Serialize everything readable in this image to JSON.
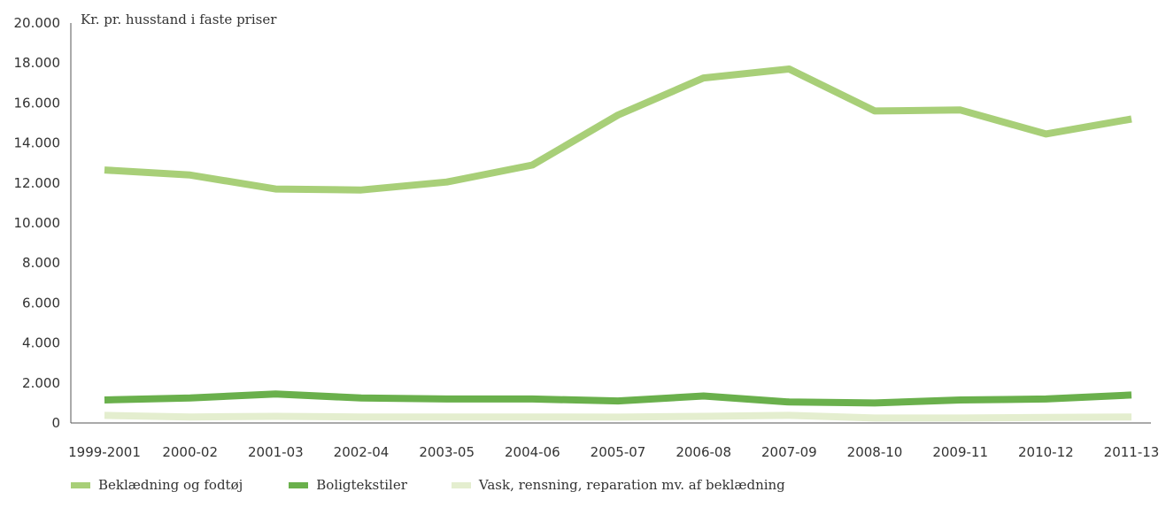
{
  "chart_data": {
    "type": "line",
    "title": "",
    "ylabel": "Kr. pr. husstand i faste priser",
    "xlabel": "",
    "categories": [
      "1999-2001",
      "2000-02",
      "2001-03",
      "2002-04",
      "2003-05",
      "2004-06",
      "2005-07",
      "2006-08",
      "2007-09",
      "2008-10",
      "2009-11",
      "2010-12",
      "2011-13"
    ],
    "ylim": [
      0,
      20000
    ],
    "y_ticks": [
      0,
      2000,
      4000,
      6000,
      8000,
      10000,
      12000,
      14000,
      16000,
      18000,
      20000
    ],
    "y_tick_labels": [
      "0",
      "2.000",
      "4.000",
      "6.000",
      "8.000",
      "10.000",
      "12.000",
      "14.000",
      "16.000",
      "18.000",
      "20.000"
    ],
    "grid": false,
    "legend_position": "bottom-left",
    "series": [
      {
        "name": "Beklædning og fodtøj",
        "color": "#a8cf78",
        "values": [
          12650,
          12400,
          11700,
          11650,
          12050,
          12900,
          15400,
          17250,
          17700,
          15600,
          15650,
          14450,
          15200
        ]
      },
      {
        "name": "Boligtekstiler",
        "color": "#6ab04c",
        "values": [
          1150,
          1250,
          1450,
          1250,
          1200,
          1200,
          1100,
          1350,
          1050,
          1000,
          1150,
          1200,
          1400
        ]
      },
      {
        "name": "Vask, rensning, reparation mv. af beklædning",
        "color": "#e4eecf",
        "values": [
          380,
          300,
          330,
          300,
          300,
          300,
          290,
          330,
          380,
          250,
          250,
          280,
          300
        ]
      }
    ]
  }
}
